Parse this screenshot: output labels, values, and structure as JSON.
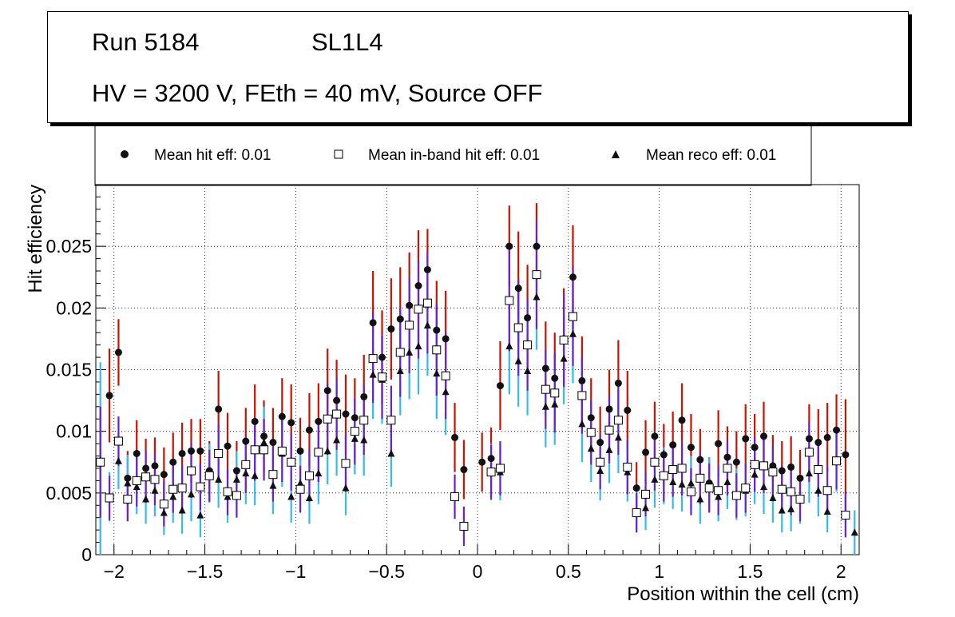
{
  "header": {
    "run": "Run 5184",
    "layer": "SL1L4",
    "conditions": "HV = 3200 V, FEth = 40 mV, Source OFF"
  },
  "legend": {
    "hit": "Mean hit  eff: 0.01",
    "inband": "Mean in-band hit eff: 0.01",
    "reco": "Mean reco eff: 0.01"
  },
  "colors": {
    "hit_error": "#cc1100",
    "inband_error": "#6a1fd0",
    "reco_error": "#33bbee",
    "marker": "#111111"
  },
  "chart_data": {
    "type": "scatter",
    "title": "",
    "xlabel": "Position within the cell (cm)",
    "ylabel": "Hit efficiency",
    "xlim": [
      -2.1,
      2.1
    ],
    "ylim": [
      0,
      0.03
    ],
    "grid": true,
    "xticks": [
      -2,
      -1.5,
      -1,
      -0.5,
      0,
      0.5,
      1,
      1.5,
      2
    ],
    "xtick_labels": [
      "−2",
      "−1.5",
      "−1",
      "−0.5",
      "0",
      "0.5",
      "1",
      "1.5",
      "2"
    ],
    "yticks": [
      0,
      0.005,
      0.01,
      0.015,
      0.02,
      0.025
    ],
    "ytick_labels": [
      "0",
      "0.005",
      "0.01",
      "0.015",
      "0.02",
      "0.025"
    ],
    "x": [
      -2.075,
      -2.025,
      -1.975,
      -1.925,
      -1.875,
      -1.825,
      -1.775,
      -1.725,
      -1.675,
      -1.625,
      -1.575,
      -1.525,
      -1.475,
      -1.425,
      -1.375,
      -1.325,
      -1.275,
      -1.225,
      -1.175,
      -1.125,
      -1.075,
      -1.025,
      -0.975,
      -0.925,
      -0.875,
      -0.825,
      -0.775,
      -0.725,
      -0.675,
      -0.625,
      -0.575,
      -0.525,
      -0.475,
      -0.425,
      -0.375,
      -0.325,
      -0.275,
      -0.225,
      -0.175,
      -0.125,
      -0.075,
      -0.025,
      0.025,
      0.075,
      0.125,
      0.175,
      0.225,
      0.275,
      0.325,
      0.375,
      0.425,
      0.475,
      0.525,
      0.575,
      0.625,
      0.675,
      0.725,
      0.775,
      0.825,
      0.875,
      0.925,
      0.975,
      1.025,
      1.075,
      1.125,
      1.175,
      1.225,
      1.275,
      1.325,
      1.375,
      1.425,
      1.475,
      1.525,
      1.575,
      1.625,
      1.675,
      1.725,
      1.775,
      1.825,
      1.875,
      1.925,
      1.975,
      2.025,
      2.075
    ],
    "series": [
      {
        "name": "Mean hit  eff: 0.01",
        "marker": "circle",
        "values": [
          0.0075,
          0.0129,
          0.0164,
          0.0062,
          0.0082,
          0.007,
          0.0072,
          0.0065,
          0.0075,
          0.0082,
          0.0084,
          0.0084,
          0.0068,
          0.0118,
          0.0088,
          0.0068,
          0.0092,
          0.0108,
          0.0096,
          0.0091,
          0.0112,
          0.0107,
          0.0084,
          0.0101,
          0.0108,
          0.0133,
          0.0125,
          0.0114,
          0.0111,
          0.0128,
          0.0188,
          0.016,
          0.0183,
          0.0191,
          0.0202,
          0.0218,
          0.0231,
          0.0182,
          0.0175,
          0.0095,
          0.0069,
          0.0,
          0.0075,
          0.0078,
          0.0137,
          0.025,
          0.0216,
          0.0192,
          0.025,
          0.0151,
          0.0143,
          0.0175,
          0.0225,
          0.0141,
          0.0111,
          0.0091,
          0.0118,
          0.0139,
          0.0117,
          0.0054,
          0.0083,
          0.0096,
          0.0081,
          0.0089,
          0.0109,
          0.0087,
          0.0077,
          0.0058,
          0.009,
          0.0079,
          0.0075,
          0.0094,
          0.0087,
          0.0096,
          0.0072,
          0.0068,
          0.0071,
          0.0062,
          0.0094,
          0.0091,
          0.0095,
          0.0101,
          0.0081,
          0.0
        ],
        "errors": [
          0.0045,
          0.0038,
          0.0027,
          0.0022,
          0.0027,
          0.0024,
          0.0023,
          0.0022,
          0.0024,
          0.0025,
          0.0026,
          0.0026,
          0.0024,
          0.0031,
          0.0027,
          0.0024,
          0.0027,
          0.003,
          0.0029,
          0.0028,
          0.0031,
          0.0031,
          0.0027,
          0.003,
          0.0031,
          0.0034,
          0.0033,
          0.0032,
          0.0032,
          0.0034,
          0.0042,
          0.0038,
          0.0041,
          0.0042,
          0.0043,
          0.0045,
          0.0033,
          0.004,
          0.0039,
          0.0028,
          0.0024,
          0.0,
          0.0024,
          0.0025,
          0.0036,
          0.0033,
          0.0046,
          0.0043,
          0.0035,
          0.0038,
          0.0037,
          0.0041,
          0.0042,
          0.0036,
          0.0032,
          0.0029,
          0.0032,
          0.0035,
          0.0032,
          0.0021,
          0.0026,
          0.0028,
          0.0025,
          0.0027,
          0.003,
          0.0027,
          0.0025,
          0.0021,
          0.0027,
          0.0025,
          0.0025,
          0.0028,
          0.0027,
          0.0028,
          0.0025,
          0.0024,
          0.0025,
          0.0023,
          0.0028,
          0.0027,
          0.0028,
          0.0029,
          0.0045,
          0.0
        ]
      },
      {
        "name": "Mean in-band hit eff: 0.01",
        "marker": "open-square",
        "values": [
          0.0075,
          0.0046,
          0.0092,
          0.0045,
          0.006,
          0.0063,
          0.0061,
          0.0041,
          0.0053,
          0.0054,
          0.0068,
          0.0055,
          0.0064,
          0.0082,
          0.0051,
          0.0048,
          0.0073,
          0.0085,
          0.0085,
          0.0065,
          0.0084,
          0.0075,
          0.0053,
          0.0064,
          0.0083,
          0.011,
          0.0114,
          0.0074,
          0.01,
          0.0109,
          0.0159,
          0.0144,
          0.0109,
          0.0164,
          0.0186,
          0.0199,
          0.0204,
          0.0166,
          0.0145,
          0.0047,
          0.0023,
          0.0,
          0.0,
          0.0067,
          0.007,
          0.0206,
          0.0184,
          0.017,
          0.0227,
          0.0134,
          0.0131,
          0.0174,
          0.0193,
          0.0129,
          0.0099,
          0.0075,
          0.0101,
          0.0109,
          0.0071,
          0.0034,
          0.0049,
          0.0075,
          0.0064,
          0.0069,
          0.007,
          0.0051,
          0.0062,
          0.0054,
          0.0052,
          0.007,
          0.0048,
          0.0054,
          0.0073,
          0.0072,
          0.0067,
          0.0053,
          0.0051,
          0.0045,
          0.0083,
          0.0069,
          0.0052,
          0.0076,
          0.0032,
          0.0
        ],
        "errors": [
          0.0045,
          0.0018,
          0.002,
          0.0018,
          0.0021,
          0.0021,
          0.0021,
          0.0018,
          0.0019,
          0.0019,
          0.0022,
          0.0019,
          0.0021,
          0.0024,
          0.0019,
          0.0018,
          0.0023,
          0.0025,
          0.0025,
          0.0022,
          0.0025,
          0.0023,
          0.0019,
          0.0021,
          0.0024,
          0.0029,
          0.0029,
          0.0023,
          0.0027,
          0.0028,
          0.0036,
          0.0034,
          0.0028,
          0.0036,
          0.0039,
          0.004,
          0.0041,
          0.0037,
          0.0035,
          0.0018,
          0.0016,
          0.0,
          0.0,
          0.0022,
          0.0022,
          0.0041,
          0.0039,
          0.0037,
          0.0044,
          0.0032,
          0.0032,
          0.0038,
          0.004,
          0.0031,
          0.0026,
          0.0022,
          0.0027,
          0.0028,
          0.0022,
          0.0016,
          0.0018,
          0.0023,
          0.0021,
          0.0022,
          0.0022,
          0.0019,
          0.0021,
          0.002,
          0.002,
          0.0022,
          0.0018,
          0.002,
          0.0022,
          0.0022,
          0.0021,
          0.0019,
          0.0019,
          0.0018,
          0.0024,
          0.0022,
          0.0019,
          0.0023,
          0.0018,
          0.0
        ]
      },
      {
        "name": "Mean reco eff: 0.01",
        "marker": "triangle",
        "values": [
          0.0076,
          0.0047,
          0.0076,
          0.0058,
          0.0055,
          0.0045,
          0.0052,
          0.0034,
          0.0047,
          0.0036,
          0.0049,
          0.0032,
          0.0066,
          0.0061,
          0.0047,
          0.0061,
          0.0066,
          0.0064,
          0.0091,
          0.0056,
          0.0082,
          0.0047,
          0.0058,
          0.0046,
          0.0066,
          0.0084,
          0.0093,
          0.0054,
          0.0094,
          0.0093,
          0.0146,
          0.0142,
          0.0082,
          0.0149,
          0.0164,
          0.0169,
          0.0186,
          0.0147,
          0.0132,
          0.0,
          0.0,
          0.0,
          0.0,
          0.0067,
          0.0067,
          0.0169,
          0.0157,
          0.0149,
          0.0209,
          0.012,
          0.0122,
          0.0159,
          0.0179,
          0.0106,
          0.0086,
          0.0068,
          0.0085,
          0.0095,
          0.0067,
          0.0035,
          0.0038,
          0.0061,
          0.0064,
          0.0059,
          0.0057,
          0.0058,
          0.0045,
          0.0057,
          0.0047,
          0.0059,
          0.0049,
          0.0052,
          0.0065,
          0.0055,
          0.0046,
          0.0036,
          0.0037,
          0.0045,
          0.0066,
          0.0052,
          0.0035,
          0.0077,
          0.0032,
          0.0018
        ],
        "errors": [
          0.008,
          0.002,
          0.0023,
          0.0023,
          0.0022,
          0.002,
          0.0021,
          0.0018,
          0.0021,
          0.0019,
          0.0022,
          0.0018,
          0.0024,
          0.0023,
          0.0021,
          0.0023,
          0.0025,
          0.0024,
          0.0029,
          0.0023,
          0.0027,
          0.0021,
          0.0023,
          0.0021,
          0.0025,
          0.0027,
          0.0029,
          0.0022,
          0.0029,
          0.0029,
          0.0036,
          0.0036,
          0.0027,
          0.0036,
          0.0038,
          0.0039,
          0.0041,
          0.0037,
          0.0035,
          0.0,
          0.0,
          0.0,
          0.0,
          0.0023,
          0.0023,
          0.0039,
          0.0037,
          0.0036,
          0.0043,
          0.0033,
          0.0033,
          0.0037,
          0.004,
          0.0031,
          0.0027,
          0.0024,
          0.0027,
          0.0029,
          0.0024,
          0.0017,
          0.0018,
          0.0023,
          0.0023,
          0.0022,
          0.0022,
          0.0022,
          0.002,
          0.0022,
          0.002,
          0.0022,
          0.0021,
          0.0021,
          0.0024,
          0.0022,
          0.002,
          0.0018,
          0.0018,
          0.002,
          0.0024,
          0.0021,
          0.0017,
          0.0026,
          0.0016,
          0.0018
        ]
      }
    ]
  }
}
